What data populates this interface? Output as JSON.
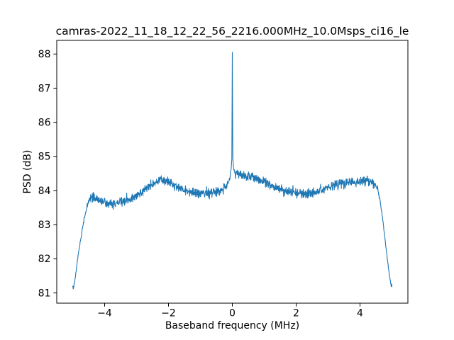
{
  "chart_data": {
    "type": "line",
    "title": "camras-2022_11_18_12_22_56_2216.000MHz_10.0Msps_ci16_le",
    "xlabel": "Baseband frequency (MHz)",
    "ylabel": "PSD (dB)",
    "xlim": [
      -5.5,
      5.5
    ],
    "ylim": [
      80.7,
      88.4
    ],
    "xticks": [
      -4,
      -2,
      0,
      2,
      4
    ],
    "xtick_labels": [
      "−4",
      "−2",
      "0",
      "2",
      "4"
    ],
    "yticks": [
      81,
      82,
      83,
      84,
      85,
      86,
      87,
      88
    ],
    "ytick_labels": [
      "81",
      "82",
      "83",
      "84",
      "85",
      "86",
      "87",
      "88"
    ],
    "grid": false,
    "legend": null,
    "line_color": "#1f77b4",
    "background_color": "#ffffff",
    "spine_color": "#000000",
    "series": [
      {
        "name": "psd-trace",
        "spike": {
          "x": 0.0,
          "peak_db": 88.05
        },
        "noise_std_db": 0.078,
        "noise_seed": 9,
        "n_samples": 1300,
        "envelope_points": [
          [
            -5.0,
            81.2
          ],
          [
            -4.98,
            81.1
          ],
          [
            -4.92,
            81.45
          ],
          [
            -4.85,
            81.95
          ],
          [
            -4.78,
            82.4
          ],
          [
            -4.7,
            82.85
          ],
          [
            -4.62,
            83.25
          ],
          [
            -4.55,
            83.55
          ],
          [
            -4.48,
            83.72
          ],
          [
            -4.4,
            83.8
          ],
          [
            -4.3,
            83.78
          ],
          [
            -4.15,
            83.7
          ],
          [
            -4.0,
            83.64
          ],
          [
            -3.8,
            83.6
          ],
          [
            -3.6,
            83.64
          ],
          [
            -3.4,
            83.7
          ],
          [
            -3.2,
            83.77
          ],
          [
            -3.0,
            83.86
          ],
          [
            -2.8,
            83.97
          ],
          [
            -2.6,
            84.12
          ],
          [
            -2.4,
            84.25
          ],
          [
            -2.25,
            84.32
          ],
          [
            -2.1,
            84.3
          ],
          [
            -1.95,
            84.22
          ],
          [
            -1.8,
            84.15
          ],
          [
            -1.6,
            84.05
          ],
          [
            -1.4,
            83.99
          ],
          [
            -1.2,
            83.95
          ],
          [
            -1.0,
            83.93
          ],
          [
            -0.8,
            83.94
          ],
          [
            -0.6,
            83.96
          ],
          [
            -0.4,
            84.0
          ],
          [
            -0.25,
            84.08
          ],
          [
            -0.15,
            84.18
          ],
          [
            -0.08,
            84.35
          ],
          [
            -0.04,
            84.6
          ],
          [
            -0.015,
            84.9
          ],
          [
            0.0,
            88.05
          ],
          [
            0.015,
            84.95
          ],
          [
            0.04,
            84.65
          ],
          [
            0.08,
            84.52
          ],
          [
            0.15,
            84.48
          ],
          [
            0.3,
            84.45
          ],
          [
            0.5,
            84.42
          ],
          [
            0.7,
            84.36
          ],
          [
            0.9,
            84.28
          ],
          [
            1.1,
            84.2
          ],
          [
            1.3,
            84.1
          ],
          [
            1.5,
            84.03
          ],
          [
            1.7,
            83.98
          ],
          [
            1.9,
            83.94
          ],
          [
            2.1,
            83.92
          ],
          [
            2.3,
            83.9
          ],
          [
            2.5,
            83.92
          ],
          [
            2.7,
            83.97
          ],
          [
            2.9,
            84.05
          ],
          [
            3.1,
            84.12
          ],
          [
            3.3,
            84.18
          ],
          [
            3.5,
            84.22
          ],
          [
            3.7,
            84.24
          ],
          [
            3.9,
            84.25
          ],
          [
            4.1,
            84.28
          ],
          [
            4.3,
            84.26
          ],
          [
            4.45,
            84.2
          ],
          [
            4.55,
            84.05
          ],
          [
            4.62,
            83.75
          ],
          [
            4.7,
            83.25
          ],
          [
            4.78,
            82.6
          ],
          [
            4.85,
            82.05
          ],
          [
            4.91,
            81.6
          ],
          [
            4.96,
            81.3
          ],
          [
            5.0,
            81.22
          ]
        ]
      }
    ]
  }
}
